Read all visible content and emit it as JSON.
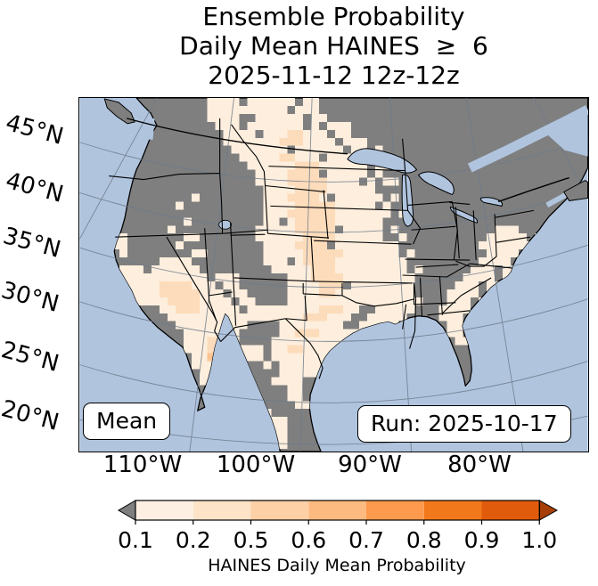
{
  "title": {
    "line1": "Ensemble Probability",
    "line2": "Daily Mean HAINES  ≥  6",
    "line3": "2025-11-12 12z-12z"
  },
  "map": {
    "lat_labels": [
      "45°N",
      "40°N",
      "35°N",
      "30°N",
      "25°N",
      "20°N"
    ],
    "lon_labels": [
      "110°W",
      "100°W",
      "90°W",
      "80°W"
    ],
    "annotations": {
      "mean": "Mean",
      "run": "Run: 2025-10-17"
    },
    "colors": {
      "ocean": "#b0c4de",
      "land": "#7f7f7f",
      "coastline": "#000000",
      "state_border": "#000000",
      "graticule": "#6e7b8a",
      "levels": [
        "#7f7f7f",
        "#fdeedd",
        "#fddcbb",
        "#fdc493",
        "#fb9b50"
      ]
    },
    "grid": {
      "cell_size": 9,
      "cols": 64,
      "rows": 44,
      "runs": [
        [
          0,
          16,
          4,
          1
        ],
        [
          0,
          21,
          6,
          1
        ],
        [
          0,
          28,
          2,
          1
        ],
        [
          1,
          16,
          10,
          1
        ],
        [
          1,
          27,
          3,
          1
        ],
        [
          2,
          16,
          5,
          1
        ],
        [
          2,
          22,
          6,
          1
        ],
        [
          2,
          29,
          2,
          1
        ],
        [
          3,
          17,
          3,
          1
        ],
        [
          3,
          21,
          9,
          1
        ],
        [
          3,
          31,
          3,
          1
        ],
        [
          4,
          18,
          13,
          1
        ],
        [
          4,
          26,
          2,
          2
        ],
        [
          4,
          32,
          2,
          1
        ],
        [
          5,
          18,
          14,
          1
        ],
        [
          5,
          25,
          3,
          2
        ],
        [
          5,
          33,
          3,
          1
        ],
        [
          6,
          19,
          14,
          1
        ],
        [
          6,
          34,
          2,
          1
        ],
        [
          6,
          37,
          1,
          1
        ],
        [
          7,
          20,
          14,
          1
        ],
        [
          7,
          25,
          2,
          2
        ],
        [
          7,
          35,
          2,
          1
        ],
        [
          8,
          21,
          15,
          1
        ],
        [
          8,
          27,
          3,
          2
        ],
        [
          8,
          37,
          2,
          1
        ],
        [
          9,
          22,
          14,
          1
        ],
        [
          9,
          26,
          4,
          2
        ],
        [
          9,
          37,
          1,
          1
        ],
        [
          10,
          22,
          15,
          1
        ],
        [
          10,
          26,
          5,
          2
        ],
        [
          10,
          38,
          2,
          1
        ],
        [
          11,
          23,
          14,
          1
        ],
        [
          11,
          27,
          4,
          2
        ],
        [
          12,
          23,
          15,
          1
        ],
        [
          12,
          26,
          4,
          2
        ],
        [
          12,
          39,
          1,
          1
        ],
        [
          13,
          23,
          14,
          1
        ],
        [
          13,
          27,
          5,
          2
        ],
        [
          13,
          38,
          1,
          1
        ],
        [
          14,
          23,
          16,
          1
        ],
        [
          14,
          26,
          6,
          2
        ],
        [
          14,
          40,
          1,
          1
        ],
        [
          15,
          23,
          15,
          1
        ],
        [
          15,
          27,
          5,
          2
        ],
        [
          16,
          22,
          16,
          1
        ],
        [
          16,
          27,
          6,
          2
        ],
        [
          16,
          39,
          1,
          1
        ],
        [
          17,
          22,
          16,
          1
        ],
        [
          17,
          28,
          4,
          2
        ],
        [
          17,
          40,
          1,
          1
        ],
        [
          18,
          23,
          17,
          1
        ],
        [
          18,
          27,
          5,
          2
        ],
        [
          19,
          23,
          17,
          1
        ],
        [
          19,
          28,
          5,
          2
        ],
        [
          19,
          41,
          1,
          1
        ],
        [
          20,
          23,
          18,
          1
        ],
        [
          20,
          28,
          4,
          2
        ],
        [
          21,
          24,
          17,
          1
        ],
        [
          21,
          29,
          3,
          2
        ],
        [
          21,
          42,
          1,
          1
        ],
        [
          22,
          26,
          15,
          1
        ],
        [
          22,
          29,
          4,
          2
        ],
        [
          23,
          26,
          15,
          1
        ],
        [
          23,
          30,
          3,
          2
        ],
        [
          24,
          26,
          16,
          1
        ],
        [
          24,
          30,
          2,
          2
        ],
        [
          25,
          26,
          16,
          1
        ],
        [
          26,
          24,
          16,
          1
        ],
        [
          26,
          30,
          3,
          2
        ],
        [
          27,
          24,
          15,
          1
        ],
        [
          27,
          28,
          3,
          2
        ],
        [
          28,
          25,
          14,
          1
        ],
        [
          29,
          25,
          13,
          1
        ],
        [
          29,
          27,
          3,
          2
        ],
        [
          30,
          24,
          11,
          1
        ],
        [
          31,
          24,
          10,
          1
        ],
        [
          31,
          26,
          2,
          2
        ],
        [
          32,
          24,
          9,
          1
        ],
        [
          33,
          25,
          7,
          1
        ],
        [
          34,
          26,
          5,
          1
        ],
        [
          20,
          10,
          4,
          1
        ],
        [
          21,
          9,
          6,
          1
        ],
        [
          22,
          9,
          7,
          1
        ],
        [
          22,
          17,
          3,
          1
        ],
        [
          23,
          8,
          9,
          1
        ],
        [
          23,
          18,
          2,
          1
        ],
        [
          24,
          8,
          10,
          1
        ],
        [
          24,
          19,
          2,
          1
        ],
        [
          25,
          9,
          10,
          1
        ],
        [
          25,
          20,
          2,
          1
        ],
        [
          26,
          10,
          10,
          1
        ],
        [
          26,
          21,
          3,
          1
        ],
        [
          27,
          11,
          13,
          1
        ],
        [
          28,
          12,
          9,
          1
        ],
        [
          23,
          10,
          4,
          2
        ],
        [
          24,
          10,
          5,
          2
        ],
        [
          25,
          11,
          4,
          2
        ],
        [
          26,
          12,
          3,
          2
        ],
        [
          11,
          4,
          1,
          1
        ],
        [
          12,
          3,
          1,
          1
        ],
        [
          13,
          12,
          1,
          1
        ],
        [
          14,
          4,
          1,
          1
        ],
        [
          15,
          3,
          2,
          1
        ],
        [
          15,
          13,
          1,
          1
        ],
        [
          16,
          4,
          1,
          1
        ],
        [
          16,
          11,
          1,
          1
        ],
        [
          17,
          4,
          2,
          1
        ],
        [
          17,
          13,
          2,
          1
        ],
        [
          18,
          4,
          2,
          1
        ],
        [
          18,
          12,
          1,
          1
        ],
        [
          19,
          5,
          1,
          1
        ],
        [
          19,
          14,
          2,
          1
        ],
        [
          12,
          14,
          1,
          1
        ],
        [
          21,
          5,
          3,
          1
        ],
        [
          22,
          5,
          4,
          1
        ],
        [
          23,
          5,
          3,
          1
        ],
        [
          24,
          6,
          3,
          1
        ],
        [
          25,
          6,
          3,
          1
        ],
        [
          16,
          52,
          3,
          1
        ],
        [
          17,
          51,
          5,
          1
        ],
        [
          17,
          57,
          2,
          1
        ],
        [
          18,
          50,
          7,
          1
        ],
        [
          18,
          58,
          1,
          1
        ],
        [
          19,
          51,
          4,
          1
        ],
        [
          19,
          56,
          2,
          1
        ],
        [
          20,
          50,
          4,
          1
        ],
        [
          20,
          55,
          2,
          1
        ],
        [
          21,
          49,
          3,
          1
        ],
        [
          21,
          53,
          2,
          1
        ],
        [
          22,
          48,
          4,
          1
        ],
        [
          22,
          53,
          1,
          1
        ],
        [
          23,
          47,
          3,
          1
        ],
        [
          23,
          51,
          2,
          1
        ],
        [
          24,
          46,
          4,
          1
        ],
        [
          24,
          51,
          1,
          1
        ],
        [
          25,
          46,
          3,
          1
        ],
        [
          25,
          50,
          2,
          1
        ],
        [
          26,
          45,
          4,
          1
        ],
        [
          27,
          45,
          3,
          1
        ],
        [
          27,
          49,
          1,
          1
        ],
        [
          28,
          46,
          2,
          1
        ],
        [
          29,
          46,
          2,
          1
        ],
        [
          30,
          47,
          2,
          1
        ],
        [
          22,
          37,
          2,
          1
        ],
        [
          22,
          40,
          2,
          1
        ],
        [
          23,
          36,
          3,
          1
        ],
        [
          23,
          41,
          1,
          1
        ],
        [
          24,
          37,
          2,
          1
        ],
        [
          24,
          40,
          2,
          1
        ],
        [
          25,
          38,
          2,
          1
        ],
        [
          25,
          41,
          2,
          1
        ],
        [
          26,
          38,
          1,
          1
        ],
        [
          26,
          40,
          2,
          1
        ],
        [
          27,
          39,
          2,
          1
        ],
        [
          28,
          38,
          2,
          1
        ],
        [
          28,
          41,
          1,
          1
        ],
        [
          29,
          39,
          2,
          1
        ],
        [
          30,
          40,
          1,
          1
        ],
        [
          31,
          39,
          2,
          1
        ],
        [
          29,
          14,
          9,
          1
        ],
        [
          30,
          14,
          9,
          1
        ],
        [
          31,
          15,
          8,
          1
        ],
        [
          32,
          15,
          8,
          1
        ],
        [
          33,
          16,
          8,
          1
        ],
        [
          34,
          16,
          8,
          1
        ],
        [
          35,
          17,
          8,
          1
        ],
        [
          36,
          18,
          7,
          1
        ],
        [
          37,
          19,
          6,
          1
        ],
        [
          38,
          20,
          6,
          1
        ],
        [
          39,
          21,
          5,
          1
        ],
        [
          40,
          21,
          5,
          1
        ],
        [
          41,
          22,
          4,
          1
        ],
        [
          42,
          22,
          4,
          1
        ],
        [
          43,
          23,
          3,
          1
        ],
        [
          30,
          16,
          2,
          2
        ],
        [
          31,
          16,
          2,
          2
        ],
        [
          32,
          16,
          2,
          3
        ],
        [
          33,
          17,
          2,
          3
        ],
        [
          34,
          17,
          1,
          4
        ],
        [
          34,
          18,
          2,
          3
        ],
        [
          35,
          17,
          1,
          2
        ],
        [
          35,
          18,
          2,
          3
        ],
        [
          36,
          18,
          1,
          4
        ],
        [
          36,
          19,
          2,
          3
        ],
        [
          37,
          19,
          1,
          3
        ],
        [
          37,
          20,
          1,
          4
        ],
        [
          38,
          20,
          2,
          3
        ],
        [
          39,
          21,
          2,
          3
        ],
        [
          40,
          22,
          1,
          3
        ],
        [
          41,
          22,
          1,
          2
        ],
        [
          29,
          13,
          1,
          1
        ],
        [
          30,
          13,
          1,
          1
        ],
        [
          31,
          13,
          2,
          1
        ],
        [
          32,
          14,
          1,
          1
        ],
        [
          33,
          14,
          2,
          1
        ],
        [
          34,
          15,
          1,
          1
        ],
        [
          35,
          15,
          2,
          1
        ],
        [
          36,
          16,
          1,
          1
        ],
        [
          37,
          16,
          2,
          1
        ],
        [
          33,
          25,
          3,
          1
        ],
        [
          34,
          25,
          3,
          1
        ],
        [
          35,
          25,
          3,
          1
        ],
        [
          36,
          26,
          2,
          1
        ],
        [
          37,
          26,
          2,
          1
        ],
        [
          38,
          27,
          2,
          1
        ],
        [
          29,
          20,
          3,
          0
        ],
        [
          30,
          20,
          3,
          0
        ],
        [
          33,
          21,
          2,
          0
        ],
        [
          34,
          21,
          3,
          0
        ],
        [
          35,
          21,
          3,
          0
        ],
        [
          36,
          22,
          3,
          0
        ],
        [
          37,
          22,
          3,
          0
        ],
        [
          38,
          23,
          3,
          0
        ],
        [
          39,
          24,
          2,
          0
        ],
        [
          2,
          20,
          2,
          0
        ],
        [
          3,
          28,
          1,
          0
        ],
        [
          4,
          22,
          1,
          0
        ],
        [
          6,
          26,
          1,
          0
        ],
        [
          7,
          30,
          1,
          0
        ],
        [
          9,
          30,
          1,
          0
        ],
        [
          10,
          35,
          1,
          0
        ],
        [
          12,
          31,
          1,
          0
        ],
        [
          15,
          25,
          1,
          0
        ],
        [
          16,
          32,
          1,
          0
        ],
        [
          18,
          31,
          1,
          0
        ],
        [
          20,
          26,
          1,
          0
        ],
        [
          23,
          33,
          1,
          0
        ],
        [
          26,
          35,
          2,
          0
        ],
        [
          27,
          34,
          2,
          0
        ],
        [
          28,
          33,
          2,
          0
        ]
      ]
    }
  },
  "colorbar": {
    "ticks": [
      "0.1",
      "0.2",
      "0.5",
      "0.6",
      "0.7",
      "0.8",
      "0.9",
      "1.0"
    ],
    "segment_colors": [
      "#fdf0e2",
      "#fde3c8",
      "#fdd0a6",
      "#fdba80",
      "#fd9a4d",
      "#f2791b",
      "#e05c0c"
    ],
    "under_arrow_color": "#7f7f7f",
    "over_arrow_color": "#a63e06",
    "label": "HAINES Daily Mean Probability"
  },
  "chart_data": {
    "type": "heatmap",
    "title": "Ensemble Probability Daily Mean HAINES ≥ 6",
    "valid_period": "2025-11-12 12z-12z",
    "model_run": "2025-10-17",
    "statistic": "Mean",
    "colorbar_label": "HAINES Daily Mean Probability",
    "colorbar_ticks": [
      0.1,
      0.2,
      0.5,
      0.6,
      0.7,
      0.8,
      0.9,
      1.0
    ],
    "lat_ticks": [
      "45°N",
      "40°N",
      "35°N",
      "30°N",
      "25°N",
      "20°N"
    ],
    "lon_ticks": [
      "110°W",
      "100°W",
      "90°W",
      "80°W"
    ],
    "legend_position": "bottom",
    "notes": "Probability shading over central US plains, desert Southwest, northern Mexico and parts of the Southeast; values mostly 0.1-0.5 with isolated 0.5-0.7 cells in Sierra Madre (Mexico)."
  }
}
